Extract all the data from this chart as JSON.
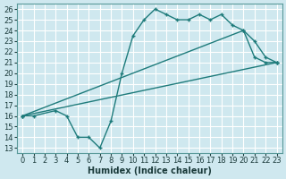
{
  "xlabel": "Humidex (Indice chaleur)",
  "bg_color": "#cfe8ef",
  "grid_color": "#ffffff",
  "line_color": "#1e7b7b",
  "xlim": [
    -0.5,
    23.5
  ],
  "ylim": [
    12.5,
    26.5
  ],
  "xticks": [
    0,
    1,
    2,
    3,
    4,
    5,
    6,
    7,
    8,
    9,
    10,
    11,
    12,
    13,
    14,
    15,
    16,
    17,
    18,
    19,
    20,
    21,
    22,
    23
  ],
  "yticks": [
    13,
    14,
    15,
    16,
    17,
    18,
    19,
    20,
    21,
    22,
    23,
    24,
    25,
    26
  ],
  "line1_x": [
    0,
    1,
    3,
    4,
    5,
    6,
    7,
    8,
    9,
    10,
    11,
    12,
    13,
    14,
    15,
    16,
    17,
    18,
    19,
    20,
    21,
    22,
    23
  ],
  "line1_y": [
    16,
    16,
    16.5,
    16,
    14,
    14,
    13,
    15.5,
    20,
    23.5,
    25,
    26,
    25.5,
    25,
    25,
    25.5,
    25,
    25.5,
    24.5,
    24,
    23,
    21.5,
    21
  ],
  "line2_x": [
    0,
    23
  ],
  "line2_y": [
    16,
    21
  ],
  "line3_x": [
    0,
    20,
    21,
    22,
    23
  ],
  "line3_y": [
    16,
    24,
    21.5,
    21,
    21
  ],
  "font_size": 7,
  "tick_font_size": 6,
  "xlabel_fontsize": 7
}
